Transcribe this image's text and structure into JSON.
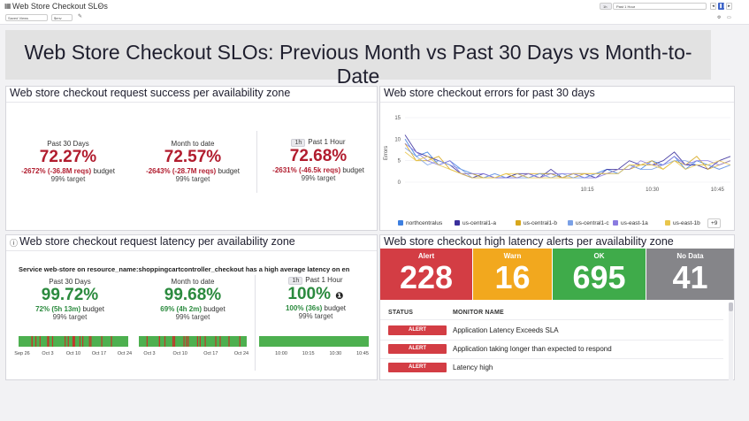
{
  "header": {
    "title": "Web Store Checkout SLOs",
    "saved_views": "Saved Views",
    "filter": "$env",
    "time_badge": "1h",
    "time_range": "Past 1 Hour",
    "ctrl_prev": "◂",
    "ctrl_pause": "❚❚",
    "ctrl_next": "▸",
    "ctrl_tv": "▭"
  },
  "banner": "Web Store Checkout SLOs: Previous Month vs Past 30 Days vs Month-to-Date",
  "success_panel": {
    "title": "Web store checkout request success per availability zone",
    "cols": [
      {
        "label": "Past 30 Days",
        "value": "72.27%",
        "budget": "-2672% (-36.8M reqs)",
        "budget_suffix": " budget",
        "target": "99% target"
      },
      {
        "label": "Month to date",
        "value": "72.57%",
        "budget": "-2643% (-28.7M reqs)",
        "budget_suffix": " budget",
        "target": "99% target"
      },
      {
        "tag": "1h",
        "label": "Past 1 Hour",
        "value": "72.68%",
        "budget": "-2631% (-46.5k reqs)",
        "budget_suffix": " budget",
        "target": "99% target"
      }
    ]
  },
  "errors_panel": {
    "title": "Web store checkout errors for past 30 days",
    "more": "+9",
    "legend": [
      {
        "name": "northcentralus",
        "color": "#3d7fe0"
      },
      {
        "name": "us-central1-a",
        "color": "#3a2f9c"
      },
      {
        "name": "us-central1-b",
        "color": "#d7a71c"
      },
      {
        "name": "us-central1-c",
        "color": "#7aa0e6"
      },
      {
        "name": "us-east-1a",
        "color": "#8a7be0"
      },
      {
        "name": "us-east-1b",
        "color": "#e9c64c"
      }
    ]
  },
  "chart_data": {
    "type": "line",
    "title": "Web store checkout errors for past 30 days",
    "ylabel": "Errors",
    "ylim": [
      0,
      15
    ],
    "yticks": [
      "15",
      "10",
      "5",
      "0"
    ],
    "xticks": [
      "10:15",
      "10:30",
      "10:45"
    ],
    "series": [
      {
        "name": "northcentralus",
        "values": [
          10,
          6,
          7,
          4,
          5,
          3,
          2,
          1,
          2,
          1,
          2,
          1,
          2,
          2,
          1,
          2,
          1,
          2,
          3,
          2,
          4,
          3,
          5,
          4,
          6,
          3,
          5,
          4,
          3,
          4
        ]
      },
      {
        "name": "us-central1-a",
        "values": [
          11,
          7,
          6,
          5,
          4,
          2,
          1,
          2,
          1,
          1,
          2,
          2,
          1,
          3,
          1,
          2,
          2,
          1,
          3,
          3,
          5,
          4,
          4,
          5,
          7,
          4,
          4,
          3,
          5,
          6
        ]
      },
      {
        "name": "us-central1-b",
        "values": [
          9,
          5,
          5,
          6,
          3,
          2,
          2,
          1,
          1,
          2,
          1,
          2,
          2,
          2,
          1,
          1,
          2,
          2,
          2,
          3,
          3,
          4,
          5,
          3,
          5,
          4,
          6,
          3,
          4,
          5
        ]
      },
      {
        "name": "us-central1-c",
        "values": [
          8,
          6,
          4,
          5,
          4,
          3,
          1,
          1,
          2,
          1,
          1,
          1,
          2,
          1,
          2,
          1,
          1,
          2,
          2,
          2,
          4,
          3,
          3,
          4,
          5,
          5,
          4,
          4,
          3,
          4
        ]
      },
      {
        "name": "us-east-1a",
        "values": [
          9,
          7,
          5,
          4,
          5,
          2,
          2,
          2,
          1,
          1,
          1,
          2,
          1,
          2,
          2,
          2,
          1,
          1,
          2,
          3,
          3,
          5,
          4,
          4,
          6,
          4,
          5,
          5,
          4,
          5
        ]
      },
      {
        "name": "us-east-1b",
        "values": [
          7,
          5,
          6,
          4,
          3,
          2,
          1,
          1,
          1,
          2,
          2,
          1,
          1,
          1,
          1,
          2,
          2,
          2,
          2,
          2,
          4,
          4,
          4,
          3,
          5,
          3,
          4,
          4,
          5,
          4
        ]
      }
    ]
  },
  "latency_panel": {
    "title": "Web store checkout request latency per availability zone",
    "monitor_text": "Service web-store on resource_name:shoppingcartcontroller_checkout has a high average latency on en",
    "cols": [
      {
        "label": "Past 30 Days",
        "value": "99.72%",
        "budget": "72% (5h 13m)",
        "budget_suffix": " budget",
        "target": "99% target",
        "ticks": [
          "Sep 26",
          "Oct 3",
          "Oct 10",
          "Oct 17",
          "Oct 24"
        ]
      },
      {
        "label": "Month to date",
        "value": "99.68%",
        "budget": "69% (4h 2m)",
        "budget_suffix": " budget",
        "target": "99% target",
        "ticks": [
          "Oct 3",
          "Oct 10",
          "Oct 17",
          "Oct 24"
        ]
      },
      {
        "tag": "1h",
        "label": "Past 1 Hour",
        "value": "100%",
        "budget": "100% (36s)",
        "budget_suffix": " budget",
        "target": "99% target",
        "ticks": [
          "10:00",
          "10:15",
          "10:30",
          "10:45"
        ]
      }
    ]
  },
  "alerts_panel": {
    "title": "Web store checkout high latency alerts per availability zone",
    "tiles": [
      {
        "name": "Alert",
        "count": "228",
        "color": "#d33d44"
      },
      {
        "name": "Warn",
        "count": "16",
        "color": "#f2a81e"
      },
      {
        "name": "OK",
        "count": "695",
        "color": "#3fab4a"
      },
      {
        "name": "No Data",
        "count": "41",
        "color": "#858589"
      }
    ],
    "col_status": "STATUS",
    "col_monitor": "MONITOR NAME",
    "rows": [
      {
        "status": "ALERT",
        "name": "Application Latency Exceeds SLA"
      },
      {
        "status": "ALERT",
        "name": "Application taking longer than expected to respond"
      },
      {
        "status": "ALERT",
        "name": "Latency high"
      }
    ]
  }
}
